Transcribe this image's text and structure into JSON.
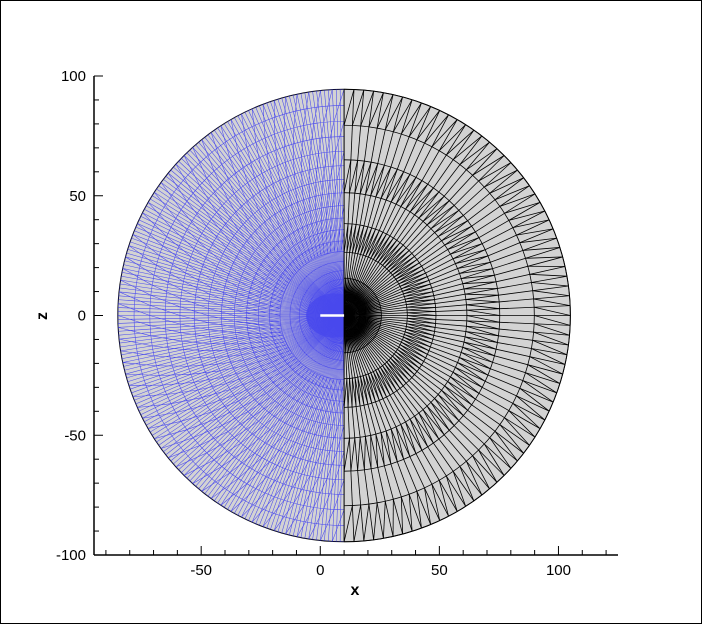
{
  "chart_data": {
    "type": "mesh-plot",
    "xlabel": "x",
    "ylabel": "z",
    "xlim": [
      -95,
      125
    ],
    "ylim": [
      -100,
      100
    ],
    "x_ticks": [
      "-50",
      "0",
      "50",
      "100"
    ],
    "y_ticks": [
      "100",
      "50",
      "0",
      "-50",
      "-100"
    ],
    "domain": {
      "shape": "circle",
      "center": [
        10,
        0
      ],
      "radius": 95
    },
    "mesh_regions": [
      {
        "name": "fine",
        "x_range": [
          -90,
          10
        ],
        "color": "#3a3af0"
      },
      {
        "name": "coarse",
        "x_range": [
          10,
          105
        ],
        "color": "#000000"
      }
    ],
    "body": {
      "shape": "flat plate",
      "x_range": [
        0,
        10
      ],
      "z": 0,
      "color": "#ffffff"
    },
    "colors": {
      "fill": "#d3d3d3",
      "fine_mesh": "#3a3af0",
      "coarse_mesh": "#000000"
    }
  }
}
